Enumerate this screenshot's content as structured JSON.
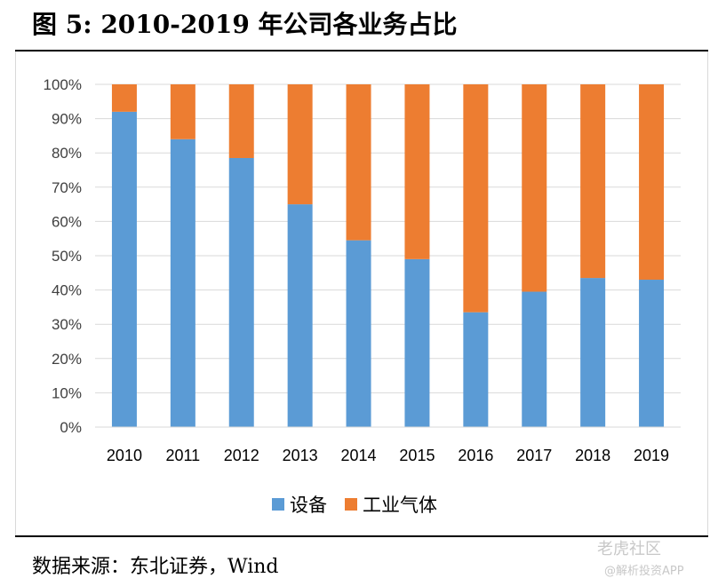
{
  "figure": {
    "title": "图 5: 2010-2019 年公司各业务占比",
    "source": "数据来源：东北证券，Wind",
    "watermark_main": "老虎社区",
    "watermark_sub": "@解析投资APP"
  },
  "chart_data": {
    "type": "bar",
    "stacked": true,
    "categories": [
      "2010",
      "2011",
      "2012",
      "2013",
      "2014",
      "2015",
      "2016",
      "2017",
      "2018",
      "2019"
    ],
    "series": [
      {
        "name": "设备",
        "color": "#5b9bd5",
        "values": [
          92,
          84,
          78.5,
          65,
          54.5,
          49,
          33.5,
          39.5,
          43.5,
          43
        ]
      },
      {
        "name": "工业气体",
        "color": "#ed7d31",
        "values": [
          8,
          16,
          21.5,
          35,
          45.5,
          51,
          66.5,
          60.5,
          56.5,
          57
        ]
      }
    ],
    "ylim": [
      0,
      100
    ],
    "yticks": [
      "0%",
      "10%",
      "20%",
      "30%",
      "40%",
      "50%",
      "60%",
      "70%",
      "80%",
      "90%",
      "100%"
    ],
    "grid": true,
    "legend_position": "bottom"
  }
}
